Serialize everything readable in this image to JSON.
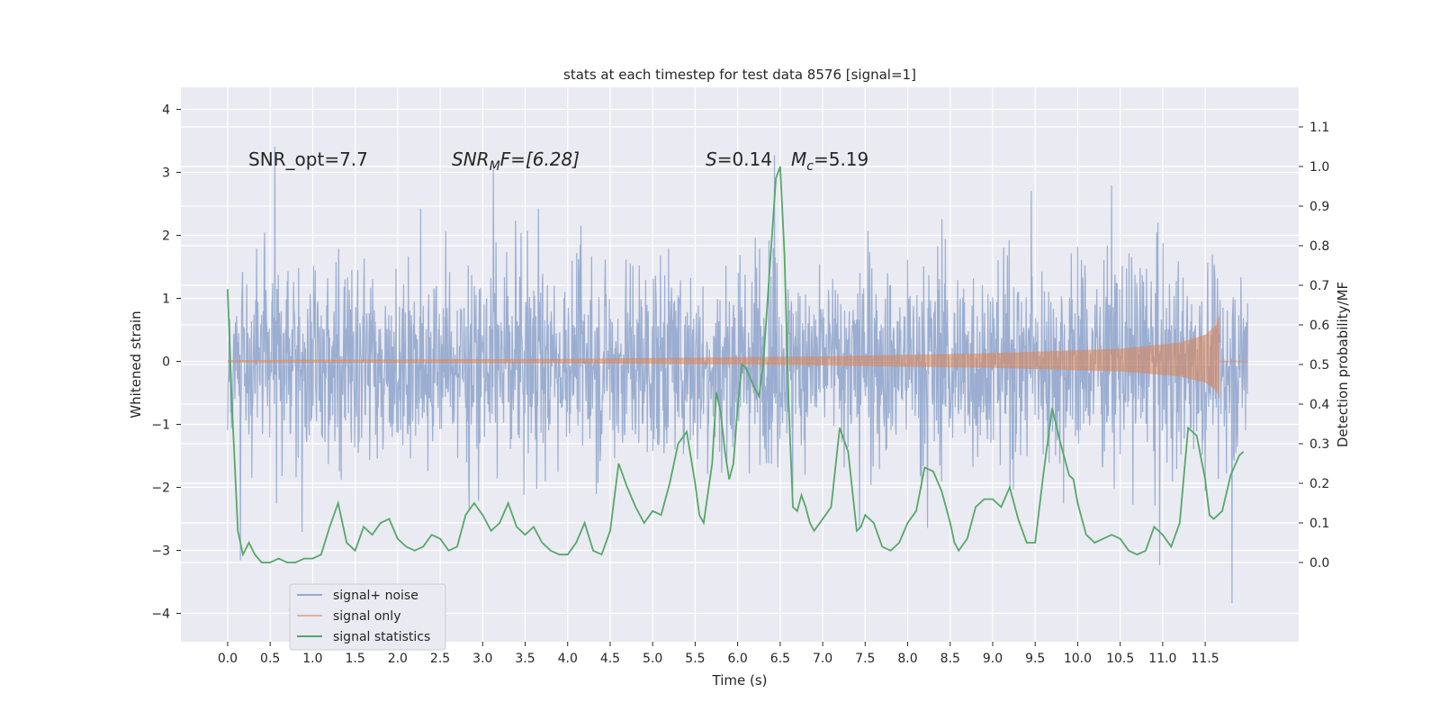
{
  "chart_data": {
    "type": "line",
    "title": "stats at each timestep for test data 8576 [signal=1]",
    "xlabel": "Time (s)",
    "ylabel_left": "Whitened strain",
    "ylabel_right": "Detection probability/MF",
    "xlim": [
      -0.55,
      12.6
    ],
    "ylim_left": [
      -4.45,
      4.35
    ],
    "ylim_right": [
      -0.2,
      1.2
    ],
    "x_ticks": [
      "0.0",
      "0.5",
      "1.0",
      "1.5",
      "2.0",
      "2.5",
      "3.0",
      "3.5",
      "4.0",
      "4.5",
      "5.0",
      "5.5",
      "6.0",
      "6.5",
      "7.0",
      "7.5",
      "8.0",
      "8.5",
      "9.0",
      "9.5",
      "10.0",
      "10.5",
      "11.0",
      "11.5"
    ],
    "y_ticks_left": [
      "4",
      "3",
      "2",
      "1",
      "0",
      "−1",
      "−2",
      "−3",
      "−4"
    ],
    "y_ticks_right": [
      "1.1",
      "1.0",
      "0.9",
      "0.8",
      "0.7",
      "0.6",
      "0.5",
      "0.4",
      "0.3",
      "0.2",
      "0.1",
      "0.0"
    ],
    "grid": true,
    "legend_position": "lower-left",
    "annotations": {
      "snr_opt": "SNR_opt=7.7",
      "snr_mf_prefix": "SNR",
      "snr_mf_sub": "M",
      "snr_mf_rest": "F=[6.28]",
      "s_var": "S",
      "s_val": "=0.14",
      "mc_var": "M",
      "mc_sub": "c",
      "mc_val": "=5.19"
    },
    "series": [
      {
        "name": "signal+ noise",
        "color": "#4c72b0",
        "axis": "left",
        "description_values": {
          "x_range": [
            0.0,
            12.0
          ],
          "typical_envelope": 1.2,
          "max": 3.98,
          "min": -4.08
        }
      },
      {
        "name": "signal only",
        "color": "#dd8452",
        "axis": "left",
        "x_range": [
          0.0,
          11.67
        ],
        "amplitude_points": [
          [
            0.0,
            0.02
          ],
          [
            4.0,
            0.04
          ],
          [
            7.0,
            0.08
          ],
          [
            9.0,
            0.13
          ],
          [
            10.5,
            0.2
          ],
          [
            11.2,
            0.3
          ],
          [
            11.5,
            0.42
          ],
          [
            11.63,
            0.58
          ],
          [
            11.67,
            0.75
          ]
        ]
      },
      {
        "name": "signal statistics",
        "color": "#55a868",
        "axis": "right",
        "x": [
          0.0,
          0.05,
          0.12,
          0.18,
          0.25,
          0.32,
          0.4,
          0.5,
          0.6,
          0.7,
          0.8,
          0.9,
          1.0,
          1.1,
          1.2,
          1.3,
          1.4,
          1.5,
          1.6,
          1.7,
          1.8,
          1.9,
          2.0,
          2.1,
          2.2,
          2.3,
          2.4,
          2.5,
          2.6,
          2.7,
          2.8,
          2.9,
          3.0,
          3.1,
          3.2,
          3.3,
          3.4,
          3.5,
          3.6,
          3.7,
          3.8,
          3.9,
          4.0,
          4.1,
          4.2,
          4.3,
          4.4,
          4.5,
          4.6,
          4.7,
          4.8,
          4.9,
          5.0,
          5.1,
          5.2,
          5.3,
          5.4,
          5.5,
          5.55,
          5.6,
          5.7,
          5.75,
          5.8,
          5.85,
          5.9,
          5.95,
          6.0,
          6.05,
          6.1,
          6.2,
          6.25,
          6.3,
          6.38,
          6.45,
          6.5,
          6.55,
          6.6,
          6.65,
          6.7,
          6.75,
          6.8,
          6.85,
          6.9,
          7.0,
          7.1,
          7.2,
          7.3,
          7.4,
          7.45,
          7.5,
          7.6,
          7.7,
          7.8,
          7.9,
          8.0,
          8.1,
          8.2,
          8.3,
          8.4,
          8.5,
          8.55,
          8.6,
          8.7,
          8.8,
          8.9,
          9.0,
          9.1,
          9.2,
          9.3,
          9.4,
          9.5,
          9.6,
          9.7,
          9.8,
          9.9,
          9.95,
          10.0,
          10.1,
          10.2,
          10.3,
          10.4,
          10.5,
          10.6,
          10.7,
          10.8,
          10.9,
          11.0,
          11.1,
          11.2,
          11.3,
          11.4,
          11.5,
          11.55,
          11.6,
          11.7,
          11.8,
          11.9,
          11.95
        ],
        "y": [
          0.69,
          0.4,
          0.08,
          0.02,
          0.05,
          0.02,
          0.0,
          0.0,
          0.01,
          0.0,
          0.0,
          0.01,
          0.01,
          0.02,
          0.09,
          0.15,
          0.05,
          0.03,
          0.09,
          0.07,
          0.1,
          0.11,
          0.06,
          0.04,
          0.03,
          0.04,
          0.07,
          0.06,
          0.03,
          0.04,
          0.12,
          0.15,
          0.12,
          0.08,
          0.1,
          0.15,
          0.09,
          0.07,
          0.09,
          0.05,
          0.03,
          0.02,
          0.02,
          0.05,
          0.1,
          0.03,
          0.02,
          0.08,
          0.25,
          0.19,
          0.14,
          0.1,
          0.13,
          0.12,
          0.2,
          0.3,
          0.33,
          0.2,
          0.12,
          0.1,
          0.25,
          0.43,
          0.38,
          0.28,
          0.21,
          0.25,
          0.39,
          0.5,
          0.49,
          0.44,
          0.42,
          0.5,
          0.75,
          0.97,
          1.0,
          0.78,
          0.4,
          0.14,
          0.13,
          0.17,
          0.14,
          0.1,
          0.08,
          0.11,
          0.14,
          0.34,
          0.28,
          0.08,
          0.09,
          0.12,
          0.1,
          0.04,
          0.03,
          0.05,
          0.1,
          0.13,
          0.24,
          0.23,
          0.18,
          0.1,
          0.05,
          0.03,
          0.06,
          0.14,
          0.16,
          0.16,
          0.14,
          0.19,
          0.11,
          0.05,
          0.05,
          0.23,
          0.39,
          0.3,
          0.22,
          0.21,
          0.15,
          0.07,
          0.05,
          0.06,
          0.07,
          0.06,
          0.03,
          0.02,
          0.03,
          0.09,
          0.07,
          0.04,
          0.1,
          0.34,
          0.32,
          0.21,
          0.12,
          0.11,
          0.13,
          0.22,
          0.27,
          0.28
        ],
        "note_points": "approximate"
      }
    ]
  }
}
